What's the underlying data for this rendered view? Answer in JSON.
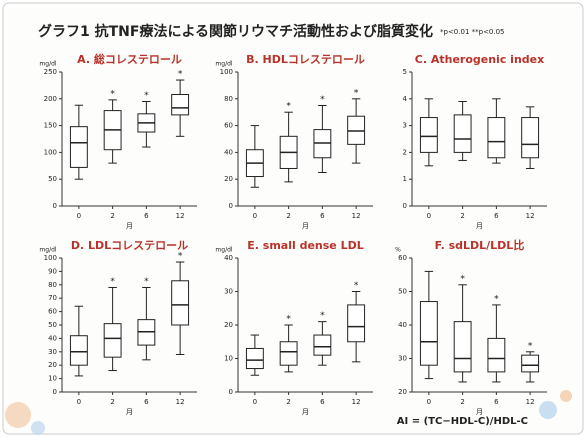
{
  "title": "グラフ1 抗TNF療法による関節リウマチ活動性および脂質変化",
  "note": "*p<0.01 **p<0.05",
  "footnote": "AI = (TC−HDL-C)/HDL-C",
  "chart_data": [
    {
      "type": "box",
      "title": "A. 総コレステロール",
      "y_label": "mg/dl",
      "x_label": "月",
      "categories": [
        "0",
        "2",
        "6",
        "12"
      ],
      "whisker_low": [
        50,
        80,
        110,
        130
      ],
      "q1": [
        72,
        105,
        138,
        170
      ],
      "median": [
        118,
        142,
        155,
        183
      ],
      "q3": [
        148,
        178,
        172,
        208
      ],
      "whisker_high": [
        188,
        198,
        195,
        235
      ],
      "significance": [
        null,
        "*",
        "*",
        "*"
      ],
      "ylim": [
        0,
        250
      ],
      "yticks": [
        0,
        50,
        100,
        150,
        200,
        250
      ]
    },
    {
      "type": "box",
      "title": "B. HDLコレステロール",
      "y_label": "mg/dl",
      "x_label": "月",
      "categories": [
        "0",
        "2",
        "6",
        "12"
      ],
      "whisker_low": [
        14,
        18,
        25,
        32
      ],
      "q1": [
        22,
        28,
        36,
        46
      ],
      "median": [
        32,
        40,
        47,
        56
      ],
      "q3": [
        42,
        52,
        57,
        67
      ],
      "whisker_high": [
        60,
        70,
        75,
        80
      ],
      "significance": [
        null,
        "*",
        "*",
        "*"
      ],
      "ylim": [
        0,
        100
      ],
      "yticks": [
        0,
        20,
        40,
        60,
        80,
        100
      ]
    },
    {
      "type": "box",
      "title": "C. Atherogenic index",
      "x_label": "月",
      "categories": [
        "0",
        "2",
        "6",
        "12"
      ],
      "whisker_low": [
        1.5,
        1.7,
        1.6,
        1.4
      ],
      "q1": [
        2.0,
        2.0,
        1.8,
        1.8
      ],
      "median": [
        2.6,
        2.5,
        2.4,
        2.3
      ],
      "q3": [
        3.3,
        3.4,
        3.3,
        3.3
      ],
      "whisker_high": [
        4.0,
        3.9,
        4.0,
        3.7
      ],
      "ylim": [
        0,
        5
      ],
      "yticks": [
        0,
        1,
        2,
        3,
        4,
        5
      ]
    },
    {
      "type": "box",
      "title": "D. LDLコレステロール",
      "y_label": "mg/dl",
      "x_label": "月",
      "categories": [
        "0",
        "2",
        "6",
        "12"
      ],
      "whisker_low": [
        12,
        16,
        24,
        28
      ],
      "q1": [
        20,
        26,
        35,
        50
      ],
      "median": [
        30,
        40,
        45,
        65
      ],
      "q3": [
        42,
        51,
        54,
        83
      ],
      "whisker_high": [
        64,
        78,
        78,
        97
      ],
      "significance": [
        null,
        "*",
        "*",
        "*"
      ],
      "ylim": [
        0,
        100
      ],
      "yticks": [
        0,
        10,
        20,
        30,
        40,
        50,
        60,
        70,
        80,
        90,
        100
      ]
    },
    {
      "type": "box",
      "title": "E. small dense LDL",
      "y_label": "mg/dl",
      "x_label": "月",
      "categories": [
        "0",
        "2",
        "6",
        "12"
      ],
      "whisker_low": [
        5,
        6,
        8,
        9
      ],
      "q1": [
        7,
        8,
        11,
        15
      ],
      "median": [
        9.5,
        12,
        13.5,
        19.5
      ],
      "q3": [
        13,
        15,
        17,
        26
      ],
      "whisker_high": [
        17,
        20,
        21,
        30
      ],
      "significance": [
        null,
        "*",
        "*",
        "*"
      ],
      "ylim": [
        0,
        40
      ],
      "yticks": [
        0,
        10,
        20,
        30,
        40
      ]
    },
    {
      "type": "box",
      "title": "F. sdLDL/LDL比",
      "y_label": "%",
      "x_label": "月",
      "categories": [
        "0",
        "2",
        "6",
        "12"
      ],
      "whisker_low": [
        24,
        23,
        23,
        23
      ],
      "q1": [
        28,
        26,
        26,
        26
      ],
      "median": [
        35,
        30,
        30,
        28
      ],
      "q3": [
        47,
        41,
        36,
        31
      ],
      "whisker_high": [
        56,
        52,
        46,
        32
      ],
      "significance": [
        null,
        "*",
        "*",
        "*"
      ],
      "ylim": [
        20,
        60
      ],
      "yticks": [
        20,
        30,
        40,
        50,
        60
      ]
    }
  ]
}
